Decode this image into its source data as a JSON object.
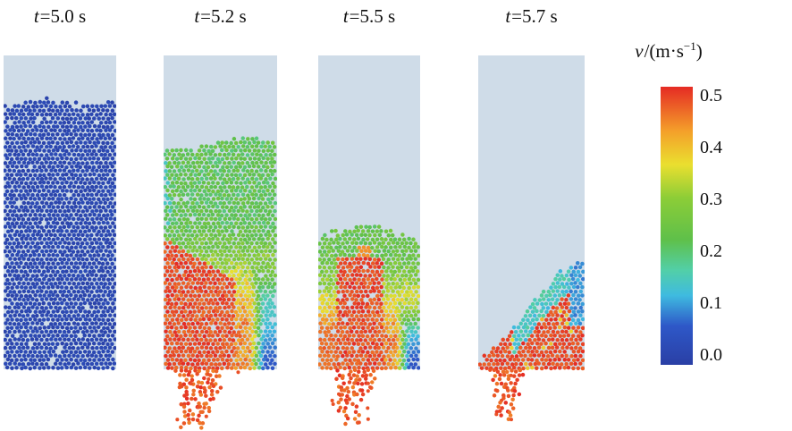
{
  "figure": {
    "panels": [
      {
        "t_symbol": "t",
        "t_rest": "=5.0 s",
        "field": "static",
        "hole_prob": 0.02,
        "jet": null
      },
      {
        "t_symbol": "t",
        "t_rest": "=5.2 s",
        "field": "discharge_early",
        "hole_prob": 0.012,
        "jet": {
          "cx0": 0.33,
          "cx1": 0.27,
          "hw0": 0.22,
          "hw1": 0.095,
          "len": 66
        }
      },
      {
        "t_symbol": "t",
        "t_rest": "=5.5 s",
        "field": "discharge_mid",
        "hole_prob": 0.012,
        "jet": {
          "cx0": 0.38,
          "cx1": 0.32,
          "hw0": 0.2,
          "hw1": 0.09,
          "len": 63
        }
      },
      {
        "t_symbol": "t",
        "t_rest": "=5.7 s",
        "field": "pile_late",
        "hole_prob": 0.01,
        "jet": {
          "cx0": 0.29,
          "cx1": 0.25,
          "hw0": 0.15,
          "hw1": 0.07,
          "len": 56
        }
      }
    ],
    "colorbar": {
      "title_v": "v",
      "title_mid": "/(m·s",
      "title_sup": "−1",
      "title_close": ")",
      "ticks": [
        "0.5",
        "0.4",
        "0.3",
        "0.2",
        "0.1",
        "0.0"
      ]
    },
    "colors": {
      "container_bg": "#cfdce8",
      "particle_rest_blue": "#2a3fa5",
      "fast_red": "#e52b24",
      "colormap_stops": [
        [
          0.0,
          "#2a3fa5"
        ],
        [
          0.14,
          "#2e58c8"
        ],
        [
          0.25,
          "#3fbbe0"
        ],
        [
          0.34,
          "#52cfa8"
        ],
        [
          0.45,
          "#5fc04a"
        ],
        [
          0.6,
          "#8ccd37"
        ],
        [
          0.72,
          "#eadf2f"
        ],
        [
          0.84,
          "#f4a02a"
        ],
        [
          1.0,
          "#e52b24"
        ]
      ]
    }
  },
  "chart_data": {
    "type": "heatmap",
    "snapshots": [
      {
        "label": "t=5.0 s",
        "time_s": 5.0,
        "fill_level_fraction": 0.85,
        "outflow_jet": false,
        "velocity_summary": "packed bed at rest, uniform v ≈ 0 m/s (blue), few isolated voids"
      },
      {
        "label": "t=5.2 s",
        "time_s": 5.2,
        "fill_level_fraction": 0.72,
        "outflow_jet": true,
        "velocity_summary": "bulk ≈ 0.2–0.25 m/s (green) with yellow–orange transition below; v ≥ 0.5 m/s (red) in lower-left core and discharge jet; slow cyan/blue zone along lower right wall"
      },
      {
        "label": "t=5.5 s",
        "time_s": 5.5,
        "fill_level_fraction": 0.44,
        "outflow_jet": true,
        "velocity_summary": "green surface layer over red fast core feeding the jet; cyan/blue stagnant corner at lower right wall"
      },
      {
        "label": "t=5.7 s",
        "time_s": 5.7,
        "fill_level_fraction": 0.2,
        "outflow_jet": true,
        "velocity_summary": "residual wedge against right wall, mostly red (≥0.5 m/s) with cyan band along free surface and blue/cyan near right wall; thin red jet below"
      }
    ],
    "colorbar": {
      "label": "v/(m·s⁻¹)",
      "min": 0.0,
      "max": 0.5,
      "tick_values": [
        0.5,
        0.4,
        0.3,
        0.2,
        0.1,
        0.0
      ],
      "colormap": "rainbow (blue→cyan→green→yellow→orange→red)",
      "orientation": "vertical"
    }
  }
}
